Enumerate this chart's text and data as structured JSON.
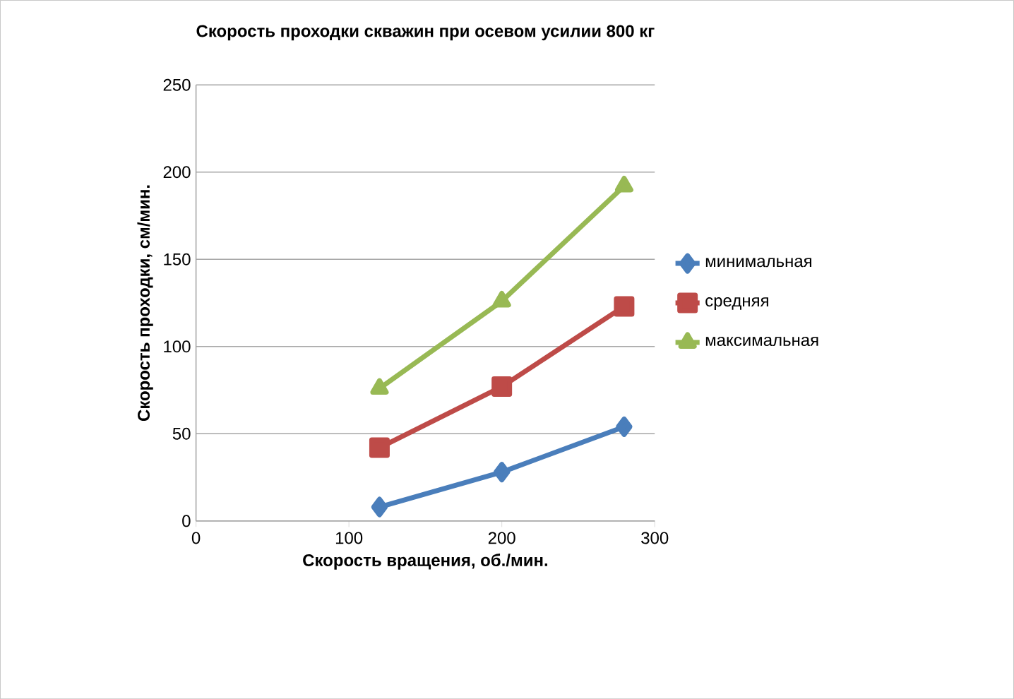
{
  "chart_data": {
    "type": "line",
    "title": "Скорость проходки скважин при осевом усилии 800 кг",
    "xlabel": "Скорость вращения, об./мин.",
    "ylabel": "Скорость проходки, см/мин.",
    "x": [
      120,
      200,
      280
    ],
    "series": [
      {
        "name": "минимальная",
        "color": "#4a7ebb",
        "marker": "diamond",
        "values": [
          8,
          28,
          54
        ]
      },
      {
        "name": "средняя",
        "color": "#be4b48",
        "marker": "square",
        "values": [
          42,
          77,
          123
        ]
      },
      {
        "name": "максимальная",
        "color": "#98b954",
        "marker": "triangle",
        "values": [
          76,
          126,
          192
        ]
      }
    ],
    "xlim": [
      0,
      300
    ],
    "xticks": [
      0,
      100,
      200,
      300
    ],
    "ylim": [
      0,
      250
    ],
    "yticks": [
      0,
      50,
      100,
      150,
      200,
      250
    ],
    "grid": "y",
    "legend": "right"
  }
}
